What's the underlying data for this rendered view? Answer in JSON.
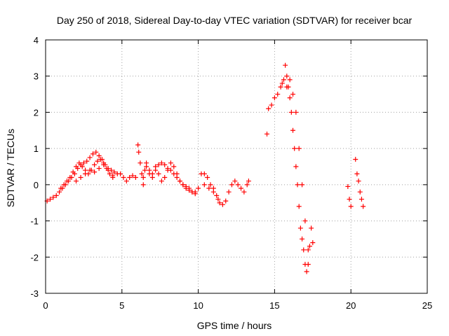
{
  "chart_data": {
    "type": "scatter",
    "title": "Day 250 of 2018, Sidereal Day-to-day VTEC variation (SDTVAR) for receiver bcar",
    "xlabel": "GPS time / hours",
    "ylabel": "SDTVAR / TECUs",
    "xlim": [
      0,
      25
    ],
    "ylim": [
      -3,
      4
    ],
    "xticks": [
      0,
      5,
      10,
      15,
      20,
      25
    ],
    "yticks": [
      -3,
      -2,
      -1,
      0,
      1,
      2,
      3,
      4
    ],
    "grid": true,
    "marker": "+",
    "series": [
      {
        "name": "bcar",
        "color": "#ff0000",
        "x": [
          0.1,
          0.3,
          0.5,
          0.7,
          0.9,
          1.1,
          1.3,
          1.5,
          1.7,
          1.9,
          2.1,
          2.3,
          2.5,
          2.7,
          2.9,
          3.1,
          3.3,
          3.5,
          3.7,
          3.9,
          4.1,
          4.3,
          4.5,
          4.7,
          4.9,
          5.1,
          5.3,
          1.0,
          1.2,
          1.4,
          1.6,
          1.8,
          2.0,
          2.2,
          2.4,
          2.6,
          2.8,
          3.0,
          3.2,
          3.4,
          3.6,
          3.8,
          4.0,
          4.2,
          4.4,
          2.0,
          2.3,
          2.6,
          2.9,
          3.2,
          3.5,
          3.8,
          4.1,
          4.4,
          5.5,
          5.7,
          5.9,
          6.05,
          6.1,
          6.2,
          6.3,
          6.4,
          6.5,
          6.6,
          6.8,
          7.0,
          7.2,
          7.4,
          7.6,
          7.8,
          8.0,
          8.2,
          8.4,
          8.6,
          8.8,
          9.0,
          9.2,
          9.4,
          9.6,
          9.8,
          10.0,
          6.4,
          6.6,
          6.8,
          7.0,
          7.2,
          7.4,
          7.6,
          7.8,
          8.0,
          8.2,
          8.4,
          8.6,
          8.8,
          9.0,
          9.2,
          9.4,
          9.6,
          9.8,
          10.2,
          10.4,
          10.6,
          10.8,
          11.0,
          11.2,
          11.4,
          11.6,
          11.8,
          12.0,
          12.2,
          12.4,
          12.6,
          12.8,
          13.0,
          13.2,
          13.3,
          10.4,
          10.7,
          11.0,
          11.3,
          14.5,
          14.6,
          14.8,
          15.0,
          15.2,
          15.4,
          15.5,
          15.6,
          15.7,
          15.8,
          15.9,
          16.0,
          16.1,
          16.2,
          16.3,
          16.4,
          16.5,
          16.6,
          16.7,
          16.8,
          16.9,
          17.0,
          17.1,
          17.2,
          17.3,
          17.4,
          17.5,
          15.8,
          16.0,
          16.2,
          16.4,
          16.6,
          16.8,
          17.0,
          17.2,
          19.8,
          19.9,
          20.0,
          20.3,
          20.4,
          20.5,
          20.6,
          20.7,
          20.8
        ],
        "y": [
          -0.45,
          -0.4,
          -0.35,
          -0.3,
          -0.2,
          -0.1,
          0.0,
          0.1,
          0.2,
          0.3,
          0.45,
          0.55,
          0.6,
          0.65,
          0.75,
          0.85,
          0.9,
          0.8,
          0.7,
          0.55,
          0.45,
          0.4,
          0.35,
          0.3,
          0.3,
          0.2,
          0.1,
          -0.1,
          0.0,
          0.1,
          0.2,
          0.35,
          0.5,
          0.6,
          0.5,
          0.4,
          0.3,
          0.4,
          0.55,
          0.65,
          0.7,
          0.6,
          0.45,
          0.3,
          0.25,
          0.1,
          0.2,
          0.3,
          0.4,
          0.35,
          0.45,
          0.55,
          0.4,
          0.2,
          0.2,
          0.25,
          0.2,
          1.1,
          0.9,
          0.6,
          0.3,
          0.0,
          0.4,
          0.5,
          0.4,
          0.3,
          0.4,
          0.55,
          0.6,
          0.55,
          0.45,
          0.4,
          0.3,
          0.2,
          0.1,
          0.0,
          -0.1,
          -0.15,
          -0.2,
          -0.2,
          -0.1,
          0.2,
          0.6,
          0.3,
          0.2,
          0.5,
          0.3,
          0.1,
          0.2,
          0.4,
          0.6,
          0.5,
          0.3,
          0.1,
          0.0,
          -0.05,
          -0.1,
          -0.2,
          -0.25,
          0.3,
          0.3,
          0.2,
          0.0,
          -0.1,
          -0.3,
          -0.5,
          -0.55,
          -0.45,
          -0.2,
          0.0,
          0.1,
          0.0,
          -0.1,
          -0.2,
          0.0,
          0.1,
          0.0,
          -0.1,
          -0.2,
          -0.4,
          1.4,
          2.1,
          2.2,
          2.4,
          2.5,
          2.7,
          2.8,
          2.9,
          3.3,
          3.0,
          2.7,
          2.4,
          2.0,
          1.5,
          1.0,
          0.5,
          0.0,
          -0.6,
          -1.2,
          -1.5,
          -1.8,
          -2.2,
          -2.4,
          -2.2,
          -1.7,
          -1.2,
          -1.6,
          2.7,
          2.9,
          2.5,
          2.0,
          1.0,
          0.0,
          -1.0,
          -1.8,
          -0.05,
          -0.4,
          -0.6,
          0.7,
          0.3,
          0.1,
          -0.2,
          -0.4,
          -0.6
        ]
      }
    ]
  }
}
